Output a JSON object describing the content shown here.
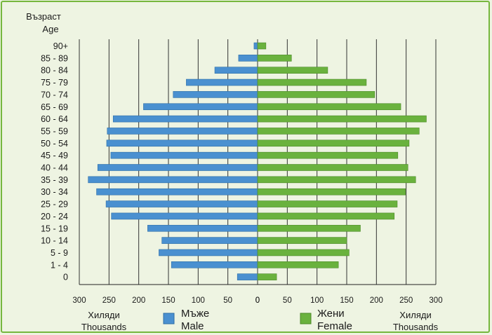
{
  "chart_data": {
    "type": "bar",
    "title": "",
    "y_title_bg": "Възраст",
    "y_title_en": "Age",
    "categories": [
      "90+",
      "85 - 89",
      "80 - 84",
      "75 - 79",
      "70 - 74",
      "65 - 69",
      "60 - 64",
      "55 - 59",
      "50 - 54",
      "45 - 49",
      "40 - 44",
      "35 - 39",
      "30 - 34",
      "25 - 29",
      "20 - 24",
      "15 - 19",
      "10 - 14",
      "5 -  9",
      "1 -  4",
      "0"
    ],
    "series": [
      {
        "name": "Мъже Male",
        "side": "left",
        "color": "#4a90d0",
        "values": [
          6,
          32,
          72,
          120,
          142,
          192,
          243,
          253,
          254,
          247,
          269,
          285,
          271,
          255,
          246,
          185,
          161,
          166,
          145,
          34
        ]
      },
      {
        "name": "Жени Female",
        "side": "right",
        "color": "#6ab23e",
        "values": [
          14,
          57,
          118,
          183,
          197,
          241,
          284,
          272,
          255,
          236,
          253,
          266,
          249,
          235,
          230,
          173,
          150,
          154,
          136,
          32
        ]
      }
    ],
    "xlim": [
      0,
      300
    ],
    "x_tick_labels_left": [
      "300",
      "250",
      "200",
      "150",
      "100",
      "50",
      "0"
    ],
    "x_tick_labels_right": [
      "50",
      "100",
      "150",
      "200",
      "250",
      "300"
    ],
    "x_tick_values_left": [
      300,
      250,
      200,
      150,
      100,
      50,
      0
    ],
    "x_tick_values_right": [
      50,
      100,
      150,
      200,
      250,
      300
    ],
    "unit_bg": "Хиляди",
    "unit_en": "Thousands",
    "legend": [
      {
        "bg": "Мъже",
        "en": "Male",
        "color": "#4a90d0"
      },
      {
        "bg": "Жени",
        "en": "Female",
        "color": "#6ab23e"
      }
    ],
    "grid": true
  }
}
